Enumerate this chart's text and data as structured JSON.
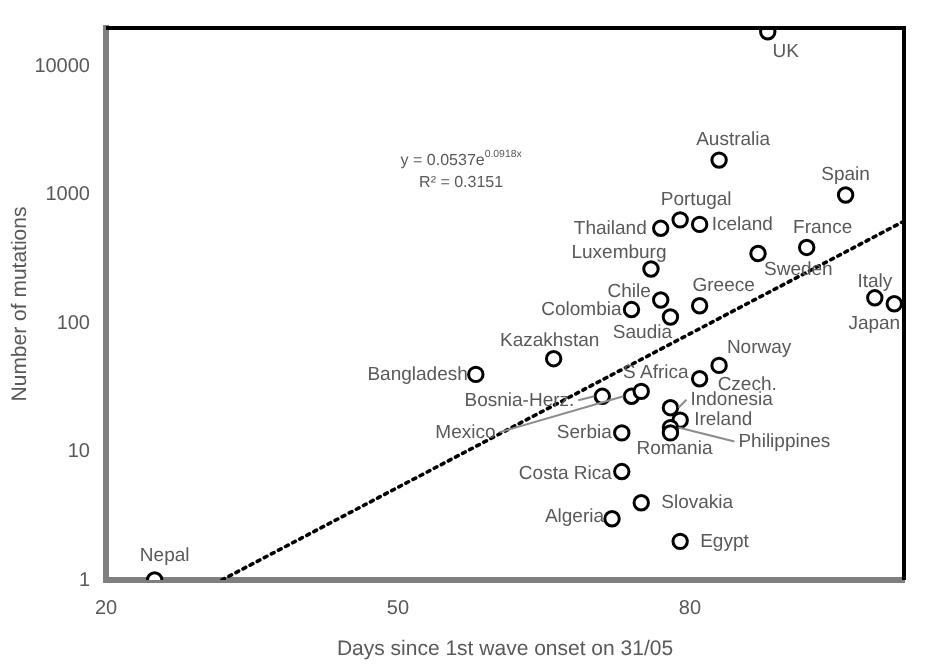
{
  "chart_data": {
    "type": "scatter",
    "xlabel": "Days since 1st wave onset on 31/05",
    "ylabel": "Number of mutations",
    "log": "y",
    "xlim": [
      20,
      102
    ],
    "xticks": [
      20,
      50,
      80
    ],
    "ylim": [
      1,
      20000
    ],
    "yticks": [
      1,
      10,
      100,
      1000,
      10000
    ],
    "grid": false,
    "legend": false,
    "series": [
      {
        "color": "#000000",
        "marker": "circle",
        "x": [
          88,
          83,
          96,
          79,
          77,
          81,
          92,
          87,
          76,
          77,
          81,
          74,
          78,
          99,
          101,
          58,
          66,
          83,
          81,
          71,
          74,
          75,
          78,
          79,
          78,
          78,
          73,
          73,
          75,
          72,
          79,
          25
        ],
        "values": [
          18700,
          1870,
          1000,
          640,
          550,
          590,
          390,
          350,
          265,
          152,
          137,
          128,
          112,
          158,
          142,
          40,
          53,
          47,
          37,
          27,
          27,
          29.5,
          22,
          17.6,
          15.4,
          14,
          14,
          7,
          4,
          3,
          2,
          1
        ]
      },
      {
        "type": "line",
        "color": "#000000",
        "line_style": "dotted",
        "marker": "none",
        "x": [
          31.9,
          102
        ],
        "values": [
          1,
          625
        ]
      }
    ],
    "annotations": [
      "y = 0.0537e$^{0.0918x}$",
      "R² = 0.3151",
      {
        "text": "UK",
        "x": 88,
        "y": 18700
      },
      {
        "text": "Australia",
        "x": 83,
        "y": 1870
      },
      {
        "text": "Spain",
        "x": 96,
        "y": 1000
      },
      {
        "text": "Portugal",
        "x": 79,
        "y": 640
      },
      {
        "text": "Thailand",
        "x": 77,
        "y": 550
      },
      {
        "text": "Iceland",
        "x": 81,
        "y": 590
      },
      {
        "text": "France",
        "x": 92,
        "y": 390
      },
      {
        "text": "Sweden",
        "x": 87,
        "y": 350
      },
      {
        "text": "Luxemburg",
        "x": 76,
        "y": 265
      },
      {
        "text": "Chile",
        "x": 77,
        "y": 152
      },
      {
        "text": "Greece",
        "x": 81,
        "y": 137
      },
      {
        "text": "Colombia",
        "x": 74,
        "y": 128
      },
      {
        "text": "Saudia",
        "x": 78,
        "y": 112
      },
      {
        "text": "Italy",
        "x": 99,
        "y": 158
      },
      {
        "text": "Japan",
        "x": 101,
        "y": 142
      },
      {
        "text": "Bangladesh",
        "x": 58,
        "y": 40
      },
      {
        "text": "Kazakhstan",
        "x": 66,
        "y": 53
      },
      {
        "text": "Norway",
        "x": 83,
        "y": 47
      },
      {
        "text": "S Africa",
        "x": 81,
        "y": 37
      },
      {
        "text": "Czech.",
        "x": 81,
        "y": 37
      },
      {
        "text": "Bosnia-Herz.",
        "x": 71,
        "y": 27
      },
      {
        "text": "Mexico",
        "x": 74,
        "y": 27
      },
      {
        "text": "Indonesia",
        "x": 78,
        "y": 22
      },
      {
        "text": "Ireland",
        "x": 79,
        "y": 17.6
      },
      {
        "text": "Philippines",
        "x": 78,
        "y": 15.4
      },
      {
        "text": "Romania",
        "x": 78,
        "y": 14
      },
      {
        "text": "Serbia",
        "x": 73,
        "y": 14
      },
      {
        "text": "Costa Rica",
        "x": 73,
        "y": 7
      },
      {
        "text": "Slovakia",
        "x": 75,
        "y": 4
      },
      {
        "text": "Algeria",
        "x": 72,
        "y": 3
      },
      {
        "text": "Egypt",
        "x": 79,
        "y": 2
      },
      {
        "text": "Nepal",
        "x": 25,
        "y": 1
      }
    ]
  }
}
